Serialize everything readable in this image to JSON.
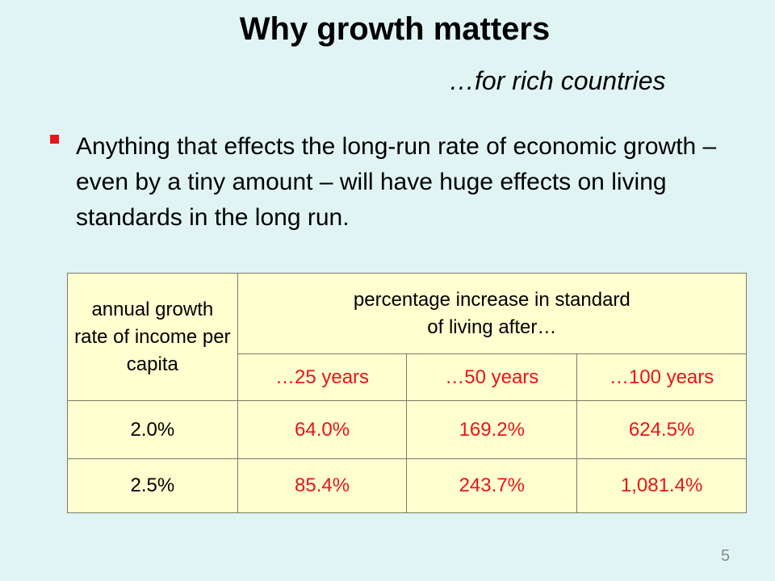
{
  "slide": {
    "title": "Why growth matters",
    "subtitle": "…for rich countries",
    "bullet": "Anything that effects the long-run rate of economic growth – even by a tiny amount – will have huge effects on living standards in the long run.",
    "page_number": "5"
  },
  "table": {
    "row_header": "annual growth rate of income per capita",
    "group_header": "percentage increase in standard of living after…",
    "columns": [
      "…25 years",
      "…50 years",
      "…100 years"
    ],
    "rows": [
      {
        "rate": "2.0%",
        "values": [
          "64.0%",
          "169.2%",
          "624.5%"
        ]
      },
      {
        "rate": "2.5%",
        "values": [
          "85.4%",
          "243.7%",
          "1,081.4%"
        ]
      }
    ]
  },
  "colors": {
    "background": "#e0f5f3",
    "table_fill": "#ffffcf",
    "accent_red": "#e8141c"
  }
}
